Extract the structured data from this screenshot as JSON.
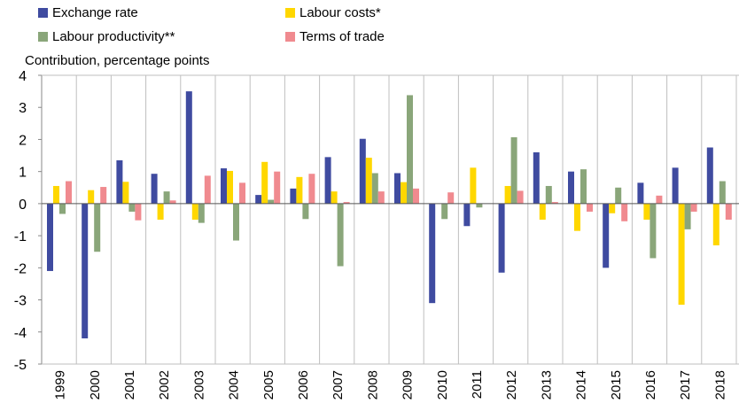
{
  "chart_data": {
    "type": "bar",
    "ylabel": "Contribution, percentage points",
    "ylim": [
      -5,
      4
    ],
    "yticks": [
      "4",
      "3",
      "2",
      "1",
      "0",
      "-1",
      "-2",
      "-3",
      "-4",
      "-5"
    ],
    "grid": "vertical",
    "legend_position": "top",
    "categories": [
      "1999",
      "2000",
      "2001",
      "2002",
      "2003",
      "2004",
      "2005",
      "2006",
      "2007",
      "2008",
      "2009",
      "2010",
      "2011",
      "2012",
      "2013",
      "2014",
      "2015",
      "2016",
      "2017",
      "2018"
    ],
    "series": [
      {
        "name": "Exchange rate",
        "color": "#3f4ba0",
        "values": [
          -2.1,
          -4.2,
          1.35,
          0.93,
          3.5,
          1.1,
          0.27,
          0.47,
          1.45,
          2.02,
          0.95,
          -3.1,
          -0.7,
          -2.15,
          1.6,
          1.0,
          -2.0,
          0.65,
          1.12,
          1.75
        ]
      },
      {
        "name": "Labour costs*",
        "color": "#ffd700",
        "values": [
          0.55,
          0.42,
          0.68,
          -0.5,
          -0.5,
          1.02,
          1.3,
          0.83,
          0.38,
          1.43,
          0.67,
          0.0,
          1.12,
          0.55,
          -0.5,
          -0.85,
          -0.3,
          -0.5,
          -3.15,
          -1.3
        ]
      },
      {
        "name": "Labour productivity**",
        "color": "#8aa67a",
        "values": [
          -0.32,
          -1.5,
          -0.25,
          0.38,
          -0.6,
          -1.15,
          0.12,
          -0.48,
          -1.95,
          0.95,
          3.38,
          -0.48,
          -0.12,
          2.07,
          0.55,
          1.07,
          0.5,
          -1.7,
          -0.8,
          0.7
        ]
      },
      {
        "name": "Terms of trade",
        "color": "#f08a8f",
        "values": [
          0.7,
          0.52,
          -0.52,
          0.1,
          0.87,
          0.65,
          1.0,
          0.93,
          0.05,
          0.38,
          0.47,
          0.35,
          0.0,
          0.4,
          0.05,
          -0.25,
          -0.55,
          0.25,
          -0.25,
          -0.5
        ]
      }
    ]
  }
}
